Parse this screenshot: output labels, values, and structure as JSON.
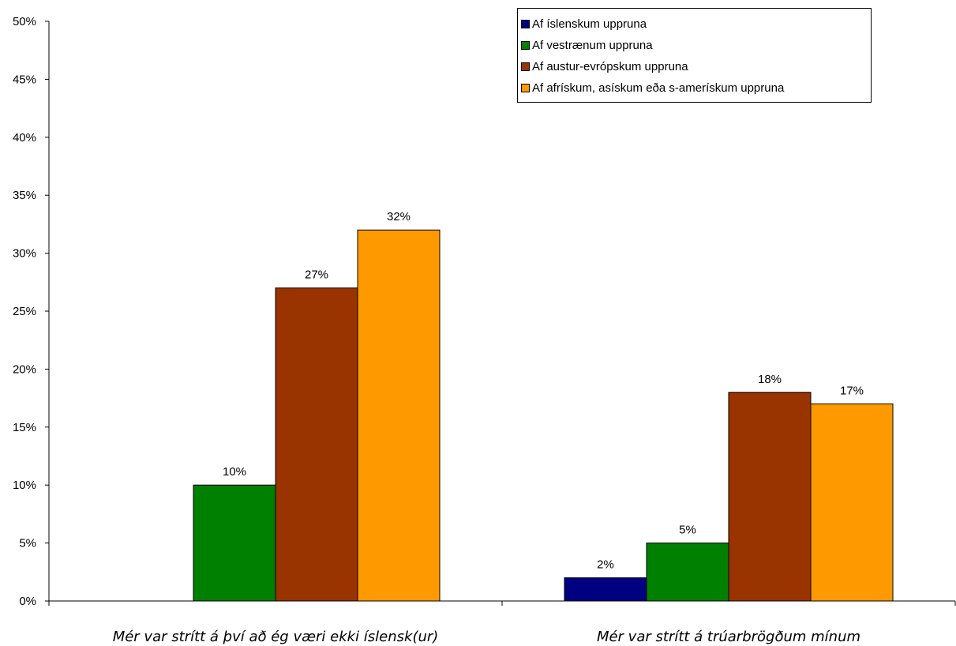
{
  "chart_data": {
    "type": "bar",
    "categories": [
      "Mér var strítt á því að ég væri ekki íslensk(ur)",
      "Mér var strítt á trúarbrögðum mínum"
    ],
    "series": [
      {
        "name": "Af íslenskum uppruna",
        "color": "#000080",
        "values": [
          0,
          2
        ],
        "labels": [
          "",
          "2%"
        ]
      },
      {
        "name": "Af vestrænum uppruna",
        "color": "#008000",
        "values": [
          10,
          5
        ],
        "labels": [
          "10%",
          "5%"
        ]
      },
      {
        "name": "Af austur-evrópskum uppruna",
        "color": "#993300",
        "values": [
          27,
          18
        ],
        "labels": [
          "27%",
          "18%"
        ]
      },
      {
        "name": "Af afrískum, asískum eða s-amerískum uppruna",
        "color": "#FF9900",
        "values": [
          32,
          17
        ],
        "labels": [
          "32%",
          "17%"
        ]
      }
    ],
    "ylim": [
      0,
      50
    ],
    "yticks": [
      "0%",
      "5%",
      "10%",
      "15%",
      "20%",
      "25%",
      "30%",
      "35%",
      "40%",
      "45%",
      "50%"
    ],
    "legend_position": "top-right",
    "grid": false
  }
}
